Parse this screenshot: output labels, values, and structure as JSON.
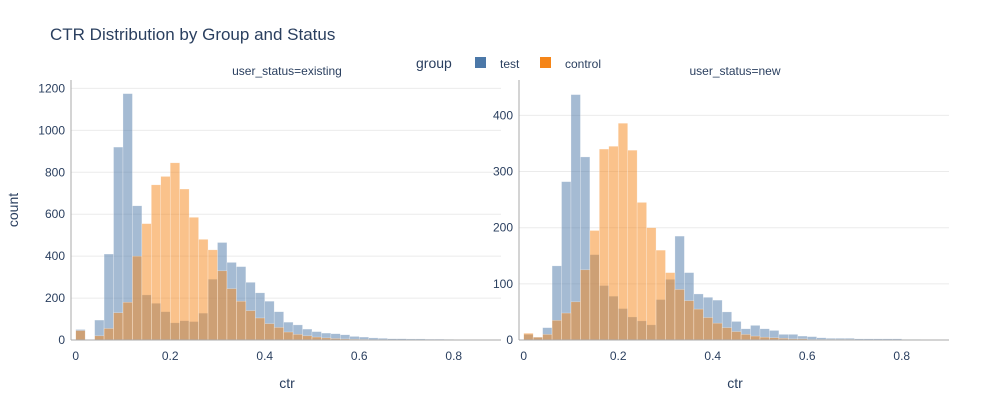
{
  "title": "CTR Distribution by Group and Status",
  "legend": {
    "title": "group",
    "items": [
      {
        "name": "test",
        "color": "#4c78a8"
      },
      {
        "name": "control",
        "color": "#f58518"
      }
    ]
  },
  "chart_data": {
    "type": "histogram",
    "barmode": "overlay",
    "bin_width": 0.02,
    "xlabel": "ctr",
    "ylabel": "count",
    "legend_placement": "top-center",
    "grid": true,
    "panels": [
      {
        "subtitle": "user_status=existing",
        "xlim": [
          -0.01,
          0.9
        ],
        "ylim": [
          0,
          1240
        ],
        "xticks": [
          0,
          0.2,
          0.4,
          0.6,
          0.8
        ],
        "xtick_labels": [
          "0",
          "0.2",
          "0.4",
          "0.6",
          "0.8"
        ],
        "yticks": [
          0,
          200,
          400,
          600,
          800,
          1000,
          1200
        ],
        "series": [
          {
            "name": "test",
            "bin_starts": [
              0.0,
              0.02,
              0.04,
              0.06,
              0.08,
              0.1,
              0.12,
              0.14,
              0.16,
              0.18,
              0.2,
              0.22,
              0.24,
              0.26,
              0.28,
              0.3,
              0.32,
              0.34,
              0.36,
              0.38,
              0.4,
              0.42,
              0.44,
              0.46,
              0.48,
              0.5,
              0.52,
              0.54,
              0.56,
              0.58,
              0.6,
              0.62,
              0.64,
              0.66,
              0.68,
              0.7,
              0.72,
              0.74,
              0.76,
              0.78
            ],
            "values": [
              50,
              0,
              95,
              410,
              920,
              1175,
              640,
              215,
              175,
              135,
              82,
              92,
              88,
              128,
              290,
              465,
              370,
              350,
              275,
              225,
              185,
              135,
              85,
              72,
              52,
              40,
              33,
              30,
              25,
              17,
              14,
              10,
              8,
              6,
              6,
              5,
              5,
              4,
              4,
              3
            ]
          },
          {
            "name": "control",
            "bin_starts": [
              0.0,
              0.02,
              0.04,
              0.06,
              0.08,
              0.1,
              0.12,
              0.14,
              0.16,
              0.18,
              0.2,
              0.22,
              0.24,
              0.26,
              0.28,
              0.3,
              0.32,
              0.34,
              0.36,
              0.38,
              0.4,
              0.42,
              0.44,
              0.46,
              0.48,
              0.5,
              0.52,
              0.54,
              0.56,
              0.58,
              0.6,
              0.62,
              0.64,
              0.66,
              0.68,
              0.7,
              0.72,
              0.74
            ],
            "values": [
              45,
              0,
              20,
              55,
              130,
              180,
              400,
              555,
              740,
              780,
              845,
              720,
              585,
              480,
              430,
              330,
              245,
              185,
              140,
              105,
              78,
              60,
              38,
              27,
              20,
              14,
              10,
              7,
              5,
              4,
              3,
              2,
              2,
              1,
              1,
              1,
              1,
              1
            ]
          }
        ]
      },
      {
        "subtitle": "user_status=new",
        "xlim": [
          -0.01,
          0.9
        ],
        "ylim": [
          0,
          463
        ],
        "xticks": [
          0,
          0.2,
          0.4,
          0.6,
          0.8
        ],
        "xtick_labels": [
          "0",
          "0.2",
          "0.4",
          "0.6",
          "0.8"
        ],
        "yticks": [
          0,
          100,
          200,
          300,
          400
        ],
        "series": [
          {
            "name": "test",
            "bin_starts": [
              0.0,
              0.02,
              0.04,
              0.06,
              0.08,
              0.1,
              0.12,
              0.14,
              0.16,
              0.18,
              0.2,
              0.22,
              0.24,
              0.26,
              0.28,
              0.3,
              0.32,
              0.34,
              0.36,
              0.38,
              0.4,
              0.42,
              0.44,
              0.46,
              0.48,
              0.5,
              0.52,
              0.54,
              0.56,
              0.58,
              0.6,
              0.62,
              0.64,
              0.66,
              0.68,
              0.7,
              0.72,
              0.74,
              0.76,
              0.78,
              0.8,
              0.82
            ],
            "values": [
              10,
              5,
              22,
              132,
              282,
              437,
              326,
              152,
              97,
              78,
              56,
              41,
              34,
              27,
              72,
              108,
              185,
              120,
              82,
              76,
              71,
              50,
              33,
              20,
              26,
              20,
              17,
              10,
              10,
              7,
              6,
              4,
              3,
              3,
              3,
              2,
              2,
              2,
              2,
              2,
              1,
              1
            ]
          },
          {
            "name": "control",
            "bin_starts": [
              0.0,
              0.02,
              0.04,
              0.06,
              0.08,
              0.1,
              0.12,
              0.14,
              0.16,
              0.18,
              0.2,
              0.22,
              0.24,
              0.26,
              0.28,
              0.3,
              0.32,
              0.34,
              0.36,
              0.38,
              0.4,
              0.42,
              0.44,
              0.46,
              0.48,
              0.5,
              0.52,
              0.54,
              0.56,
              0.58,
              0.6,
              0.62,
              0.64,
              0.66,
              0.68
            ],
            "values": [
              12,
              5,
              10,
              35,
              48,
              68,
              125,
              195,
              340,
              345,
              386,
              338,
              245,
              200,
              160,
              120,
              90,
              70,
              55,
              40,
              30,
              22,
              15,
              10,
              7,
              5,
              4,
              3,
              2,
              2,
              1,
              1,
              1,
              1,
              1
            ]
          }
        ]
      }
    ]
  }
}
